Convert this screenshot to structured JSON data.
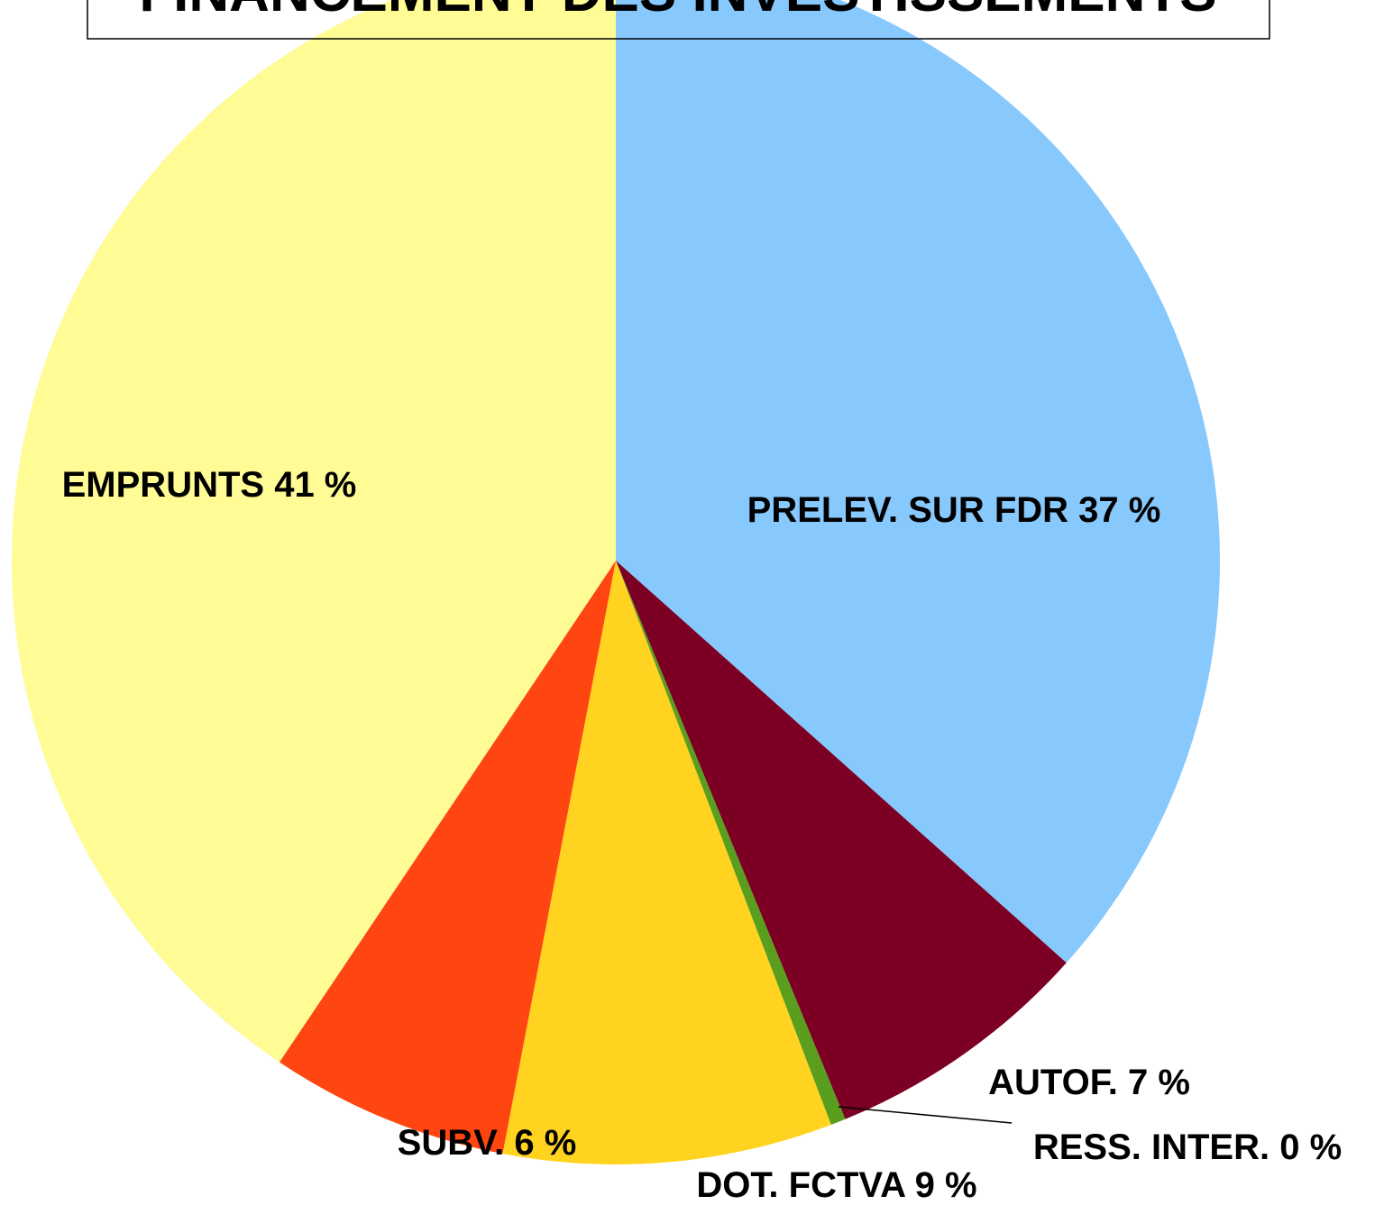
{
  "chart_data": {
    "type": "pie",
    "title": "FINANCEMENT DES INVESTISSEMENTS",
    "categories": [
      "PRELEV. SUR FDR",
      "AUTOF.",
      "RESS. INTER.",
      "DOT. FCTVA",
      "SUBV.",
      "EMPRUNTS"
    ],
    "values": [
      36.6,
      7.2,
      0.4,
      8.8,
      6.4,
      40.6
    ],
    "value_labels": [
      "37 %",
      "7 %",
      "0 %",
      "9 %",
      "6 %",
      "41 %"
    ],
    "colors": [
      "#87c8fd",
      "#7b0024",
      "#5a9e1e",
      "#ffd320",
      "#ff4510",
      "#fffb95"
    ]
  }
}
